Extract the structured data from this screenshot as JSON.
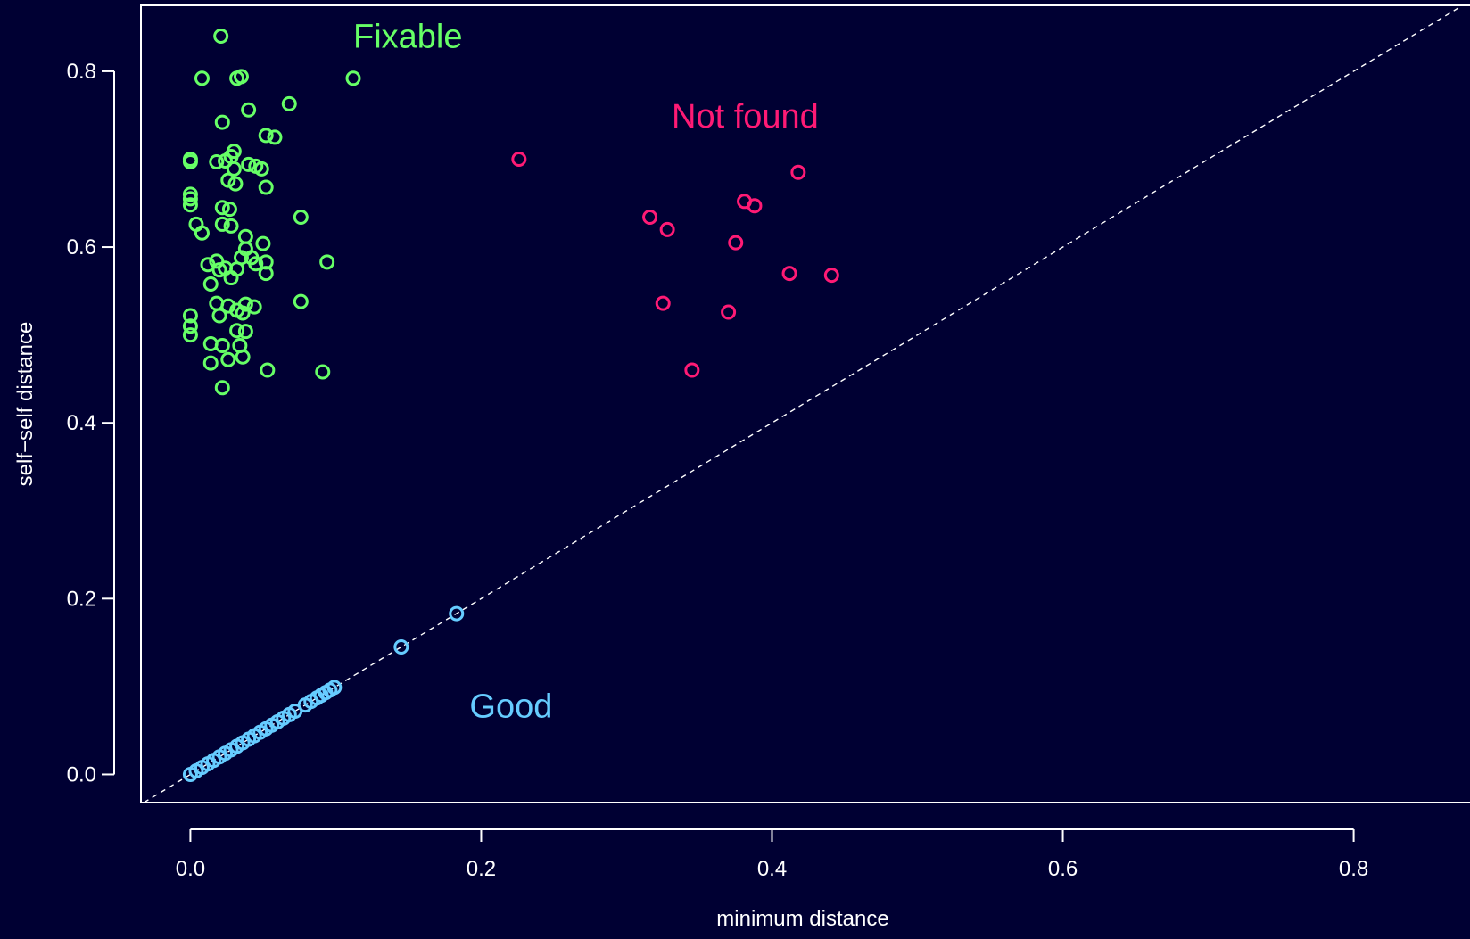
{
  "chart_data": {
    "type": "scatter",
    "title": "",
    "xlabel": "minimum distance",
    "ylabel": "self−self distance",
    "xlim": [
      -0.034,
      0.88
    ],
    "ylim": [
      -0.032,
      0.875
    ],
    "x_ticks": [
      0.0,
      0.2,
      0.4,
      0.6,
      0.8
    ],
    "x_tick_labels": [
      "0.0",
      "0.2",
      "0.4",
      "0.6",
      "0.8"
    ],
    "y_ticks": [
      0.0,
      0.2,
      0.4,
      0.6,
      0.8
    ],
    "y_tick_labels": [
      "0.0",
      "0.2",
      "0.4",
      "0.6",
      "0.8"
    ],
    "grid": false,
    "background": "#000033",
    "reference_line": {
      "style": "dashed",
      "slope": 1,
      "intercept": 0,
      "color": "#ffffff"
    },
    "series": [
      {
        "name": "Fixable",
        "color": "#66ff66",
        "points": [
          [
            0.021,
            0.84
          ],
          [
            0.008,
            0.792
          ],
          [
            0.032,
            0.792
          ],
          [
            0.035,
            0.794
          ],
          [
            0.112,
            0.792
          ],
          [
            0.068,
            0.763
          ],
          [
            0.04,
            0.756
          ],
          [
            0.022,
            0.742
          ],
          [
            0.052,
            0.727
          ],
          [
            0.058,
            0.725
          ],
          [
            0.0,
            0.7
          ],
          [
            0.0,
            0.697
          ],
          [
            0.018,
            0.697
          ],
          [
            0.024,
            0.698
          ],
          [
            0.028,
            0.703
          ],
          [
            0.03,
            0.709
          ],
          [
            0.04,
            0.694
          ],
          [
            0.045,
            0.692
          ],
          [
            0.049,
            0.689
          ],
          [
            0.03,
            0.689
          ],
          [
            0.026,
            0.676
          ],
          [
            0.031,
            0.672
          ],
          [
            0.052,
            0.668
          ],
          [
            0.0,
            0.66
          ],
          [
            0.0,
            0.655
          ],
          [
            0.0,
            0.648
          ],
          [
            0.022,
            0.645
          ],
          [
            0.027,
            0.643
          ],
          [
            0.076,
            0.634
          ],
          [
            0.004,
            0.626
          ],
          [
            0.022,
            0.626
          ],
          [
            0.028,
            0.624
          ],
          [
            0.008,
            0.616
          ],
          [
            0.038,
            0.612
          ],
          [
            0.05,
            0.604
          ],
          [
            0.038,
            0.598
          ],
          [
            0.035,
            0.588
          ],
          [
            0.042,
            0.588
          ],
          [
            0.052,
            0.583
          ],
          [
            0.094,
            0.583
          ],
          [
            0.018,
            0.584
          ],
          [
            0.012,
            0.58
          ],
          [
            0.045,
            0.581
          ],
          [
            0.02,
            0.574
          ],
          [
            0.024,
            0.576
          ],
          [
            0.032,
            0.575
          ],
          [
            0.052,
            0.57
          ],
          [
            0.028,
            0.565
          ],
          [
            0.014,
            0.558
          ],
          [
            0.018,
            0.536
          ],
          [
            0.076,
            0.538
          ],
          [
            0.026,
            0.533
          ],
          [
            0.038,
            0.535
          ],
          [
            0.044,
            0.532
          ],
          [
            0.032,
            0.528
          ],
          [
            0.036,
            0.525
          ],
          [
            0.02,
            0.522
          ],
          [
            0.0,
            0.522
          ],
          [
            0.0,
            0.51
          ],
          [
            0.0,
            0.5
          ],
          [
            0.032,
            0.505
          ],
          [
            0.038,
            0.504
          ],
          [
            0.014,
            0.49
          ],
          [
            0.022,
            0.488
          ],
          [
            0.034,
            0.488
          ],
          [
            0.036,
            0.475
          ],
          [
            0.026,
            0.472
          ],
          [
            0.014,
            0.468
          ],
          [
            0.053,
            0.46
          ],
          [
            0.091,
            0.458
          ],
          [
            0.022,
            0.44
          ]
        ]
      },
      {
        "name": "Not found",
        "color": "#ff1a75",
        "points": [
          [
            0.226,
            0.7
          ],
          [
            0.418,
            0.685
          ],
          [
            0.381,
            0.652
          ],
          [
            0.388,
            0.647
          ],
          [
            0.316,
            0.634
          ],
          [
            0.328,
            0.62
          ],
          [
            0.375,
            0.605
          ],
          [
            0.412,
            0.57
          ],
          [
            0.441,
            0.568
          ],
          [
            0.325,
            0.536
          ],
          [
            0.37,
            0.526
          ],
          [
            0.345,
            0.46
          ]
        ]
      },
      {
        "name": "Good",
        "color": "#66ccff",
        "points": [
          [
            0.0,
            0.0
          ],
          [
            0.004,
            0.004
          ],
          [
            0.008,
            0.008
          ],
          [
            0.012,
            0.012
          ],
          [
            0.016,
            0.016
          ],
          [
            0.02,
            0.02
          ],
          [
            0.024,
            0.024
          ],
          [
            0.028,
            0.028
          ],
          [
            0.032,
            0.032
          ],
          [
            0.036,
            0.036
          ],
          [
            0.04,
            0.04
          ],
          [
            0.044,
            0.044
          ],
          [
            0.048,
            0.048
          ],
          [
            0.052,
            0.052
          ],
          [
            0.056,
            0.056
          ],
          [
            0.06,
            0.06
          ],
          [
            0.064,
            0.064
          ],
          [
            0.068,
            0.068
          ],
          [
            0.072,
            0.072
          ],
          [
            0.079,
            0.079
          ],
          [
            0.083,
            0.083
          ],
          [
            0.087,
            0.087
          ],
          [
            0.09,
            0.09
          ],
          [
            0.093,
            0.093
          ],
          [
            0.096,
            0.096
          ],
          [
            0.099,
            0.099
          ],
          [
            0.145,
            0.145
          ],
          [
            0.183,
            0.183
          ]
        ]
      }
    ],
    "annotations": [
      {
        "text": "Fixable",
        "x": 0.112,
        "y": 0.84,
        "color": "#66ff66"
      },
      {
        "text": "Not found",
        "x": 0.331,
        "y": 0.749,
        "color": "#ff1a75"
      },
      {
        "text": "Good",
        "x": 0.192,
        "y": 0.078,
        "color": "#66ccff"
      }
    ]
  }
}
